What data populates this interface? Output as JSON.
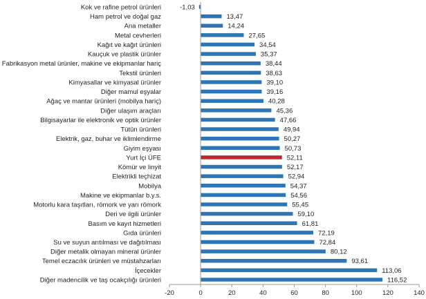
{
  "chart_data": {
    "type": "bar",
    "orientation": "horizontal",
    "categories": [
      "Kok ve rafine petrol ürünleri",
      "Ham petrol ve doğal gaz",
      "Ana metaller",
      "Metal cevherleri",
      "Kağıt ve kağıt ürünleri",
      "Kauçuk ve plastik ürünler",
      "Fabrikasyon metal ürünler, makine ve ekipmanlar hariç",
      "Tekstil ürünleri",
      "Kimyasallar ve kimyasal ürünler",
      "Diğer mamul eşyalar",
      "Ağaç ve mantar ürünleri (mobilya hariç)",
      "Diğer ulaşım araçları",
      "Bilgisayarlar ile elektronik ve optik ürünler",
      "Tütün ürünleri",
      "Elektrik, gaz, buhar ve iklimlendirme",
      "Giyim eşyası",
      "Yurt İçi ÜFE",
      "Kömür ve linyit",
      "Elektrikli teçhizat",
      "Mobilya",
      "Makine ve ekipmanlar b.y.s.",
      "Motorlu kara taşıtları, römork ve yarı römork",
      "Deri ve ilgili ürünler",
      "Basım ve kayıt hizmetleri",
      "Gıda ürünleri",
      "Su ve suyun arıtılması ve dağıtılması",
      "Diğer metalik olmayan mineral ürünler",
      "Temel eczacılık ürünleri ve müstahzarları",
      "İçecekler",
      "Diğer madencilik ve taş ocakçılığı ürünleri"
    ],
    "values": [
      -1.03,
      13.47,
      14.24,
      27.65,
      34.54,
      35.37,
      38.44,
      38.63,
      39.1,
      39.16,
      40.28,
      45.36,
      47.66,
      49.94,
      50.27,
      50.73,
      52.11,
      52.17,
      52.94,
      54.37,
      54.56,
      55.45,
      59.1,
      61.81,
      72.19,
      72.84,
      80.12,
      93.61,
      113.06,
      116.52
    ],
    "value_labels": [
      "-1,03",
      "13,47",
      "14,24",
      "27,65",
      "34,54",
      "35,37",
      "38,44",
      "38,63",
      "39,10",
      "39,16",
      "40,28",
      "45,36",
      "47,66",
      "49,94",
      "50,27",
      "50,73",
      "52,11",
      "52,17",
      "52,94",
      "54,37",
      "54,56",
      "55,45",
      "59,10",
      "61,81",
      "72,19",
      "72,84",
      "80,12",
      "93,61",
      "113,06",
      "116,52"
    ],
    "highlight_category": "Yurt İçi ÜFE",
    "xlim": [
      -20,
      140
    ],
    "x_ticks": [
      "-20",
      "0",
      "20",
      "40",
      "60",
      "80",
      "100",
      "120",
      "140"
    ],
    "grid": false,
    "colors": {
      "bar": "#2e75b6",
      "highlight": "#c0272d"
    }
  }
}
